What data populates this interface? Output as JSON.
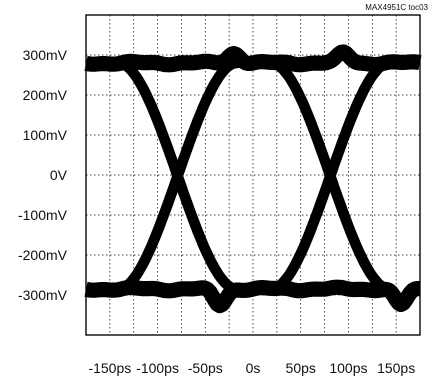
{
  "chart_data": {
    "type": "eye_diagram",
    "annotation": "MAX4951C toc03",
    "xlim": [
      -175,
      175
    ],
    "ylim": [
      -400,
      400
    ],
    "x_ticks": [
      -150,
      -100,
      -50,
      0,
      50,
      100,
      150
    ],
    "x_tick_labels": [
      "-150ps",
      "-100ps",
      "-50ps",
      "0s",
      "50ps",
      "100ps",
      "150ps"
    ],
    "y_ticks": [
      300,
      200,
      100,
      0,
      -100,
      -200,
      -300
    ],
    "y_tick_labels": [
      "300mV",
      "200mV",
      "100mV",
      "0V",
      "-100mV",
      "-200mV",
      "-300mV"
    ],
    "grid": true,
    "series": [
      {
        "high_level": 280,
        "low_level": -285,
        "crossing_level": 0,
        "crossings": [
          -79,
          81
        ],
        "edge_transition_span": 62,
        "trace_band_thickness": 38,
        "overshoot_peak": 305,
        "undershoot_peak": -325,
        "color": "#000000"
      }
    ]
  }
}
